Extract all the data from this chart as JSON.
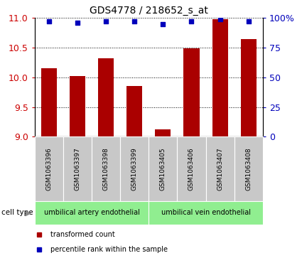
{
  "title": "GDS4778 / 218652_s_at",
  "samples": [
    "GSM1063396",
    "GSM1063397",
    "GSM1063398",
    "GSM1063399",
    "GSM1063405",
    "GSM1063406",
    "GSM1063407",
    "GSM1063408"
  ],
  "transformed_count": [
    10.15,
    10.02,
    10.32,
    9.85,
    9.12,
    10.49,
    10.98,
    10.65
  ],
  "percentile_rank": [
    97,
    96,
    97,
    97,
    95,
    97,
    99,
    97
  ],
  "ylim_left": [
    9.0,
    11.0
  ],
  "ylim_right": [
    0,
    100
  ],
  "yticks_left": [
    9.0,
    9.5,
    10.0,
    10.5,
    11.0
  ],
  "yticks_right": [
    0,
    25,
    50,
    75,
    100
  ],
  "bar_color": "#AA0000",
  "dot_color": "#0000BB",
  "cell_type_groups": [
    {
      "label": "umbilical artery endothelial",
      "start": 0,
      "end": 4,
      "color": "#90EE90"
    },
    {
      "label": "umbilical vein endothelial",
      "start": 4,
      "end": 8,
      "color": "#90EE90"
    }
  ],
  "legend_items": [
    {
      "label": "transformed count",
      "color": "#AA0000"
    },
    {
      "label": "percentile rank within the sample",
      "color": "#0000BB"
    }
  ],
  "cell_type_label": "cell type",
  "tick_color_left": "#CC0000",
  "tick_color_right": "#0000BB",
  "sample_box_color": "#C8C8C8",
  "bar_width": 0.55
}
